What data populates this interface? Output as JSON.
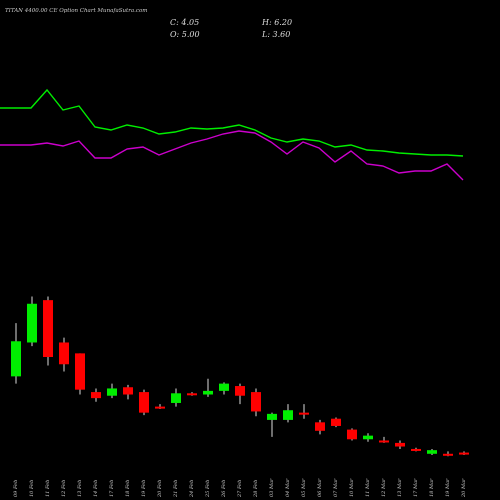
{
  "chart_data": {
    "type": "candlestick",
    "title": "TITAN 4400.00 CE Option  Chart MunafaSutra.com",
    "ohlc_readout": {
      "c": "C: 4.05",
      "h": "H: 6.20",
      "o": "O: 5.00",
      "l": "L: 3.60"
    },
    "categories": [
      "09 Feb",
      "10 Feb",
      "11 Feb",
      "12 Feb",
      "13 Feb",
      "14 Feb",
      "17 Feb",
      "18 Feb",
      "19 Feb",
      "20 Feb",
      "21 Feb",
      "24 Feb",
      "25 Feb",
      "26 Feb",
      "27 Feb",
      "28 Feb",
      "03 Mar",
      "04 Mar",
      "05 Mar",
      "06 Mar",
      "07 Mar",
      "10 Mar",
      "11 Mar",
      "12 Mar",
      "13 Mar",
      "17 Mar",
      "18 Mar",
      "19 Mar",
      "20 Mar"
    ],
    "candles": [
      {
        "o": 110,
        "h": 154,
        "l": 104,
        "c": 139
      },
      {
        "o": 138,
        "h": 176,
        "l": 135,
        "c": 170
      },
      {
        "o": 173,
        "h": 176,
        "l": 119,
        "c": 126
      },
      {
        "o": 138,
        "h": 142,
        "l": 114,
        "c": 120
      },
      {
        "o": 129,
        "h": 129,
        "l": 95,
        "c": 99
      },
      {
        "o": 97,
        "h": 100,
        "l": 89,
        "c": 92
      },
      {
        "o": 94,
        "h": 104,
        "l": 92,
        "c": 100
      },
      {
        "o": 101,
        "h": 103,
        "l": 91,
        "c": 95
      },
      {
        "o": 97,
        "h": 99,
        "l": 78,
        "c": 80
      },
      {
        "o": 85,
        "h": 87,
        "l": 83,
        "c": 84
      },
      {
        "o": 88,
        "h": 100,
        "l": 85,
        "c": 96
      },
      {
        "o": 96,
        "h": 97,
        "l": 94,
        "c": 95
      },
      {
        "o": 95,
        "h": 108,
        "l": 93,
        "c": 98
      },
      {
        "o": 98,
        "h": 105,
        "l": 95,
        "c": 104
      },
      {
        "o": 102,
        "h": 104,
        "l": 87,
        "c": 94
      },
      {
        "o": 97,
        "h": 100,
        "l": 77,
        "c": 81
      },
      {
        "o": 74,
        "h": 80,
        "l": 60,
        "c": 79
      },
      {
        "o": 74,
        "h": 87,
        "l": 72,
        "c": 82
      },
      {
        "o": 80,
        "h": 87,
        "l": 75,
        "c": 79
      },
      {
        "o": 72,
        "h": 74,
        "l": 62,
        "c": 65
      },
      {
        "o": 75,
        "h": 76,
        "l": 68,
        "c": 69
      },
      {
        "o": 66,
        "h": 67,
        "l": 57,
        "c": 58
      },
      {
        "o": 58,
        "h": 63,
        "l": 56,
        "c": 61
      },
      {
        "o": 57,
        "h": 60,
        "l": 55,
        "c": 56
      },
      {
        "o": 55,
        "h": 57,
        "l": 50,
        "c": 52
      },
      {
        "o": 50,
        "h": 51,
        "l": 48,
        "c": 49
      },
      {
        "o": 46,
        "h": 50,
        "l": 45,
        "c": 49
      },
      {
        "o": 46,
        "h": 48,
        "l": 44,
        "c": 45
      },
      {
        "o": 47,
        "h": 48,
        "l": 45,
        "c": 46
      }
    ],
    "series": [
      {
        "color": "#00ee00",
        "values": [
          232,
          232,
          250,
          230,
          234,
          213,
          210,
          215,
          212,
          206,
          208,
          212,
          211,
          212,
          215,
          210,
          202,
          198,
          201,
          199,
          193,
          195,
          190,
          189,
          187,
          186,
          185,
          185,
          184
        ]
      },
      {
        "color": "#cc00cc",
        "values": [
          195,
          195,
          197,
          194,
          199,
          182,
          182,
          191,
          193,
          185,
          191,
          197,
          201,
          206,
          209,
          207,
          198,
          186,
          198,
          192,
          178,
          189,
          176,
          174,
          167,
          169,
          169,
          176,
          160
        ]
      }
    ],
    "colors": {
      "up": "#00ee00",
      "down": "#ff0000",
      "doji": "#ffffff",
      "background": "#000000"
    },
    "grid": false,
    "legend": "none"
  }
}
